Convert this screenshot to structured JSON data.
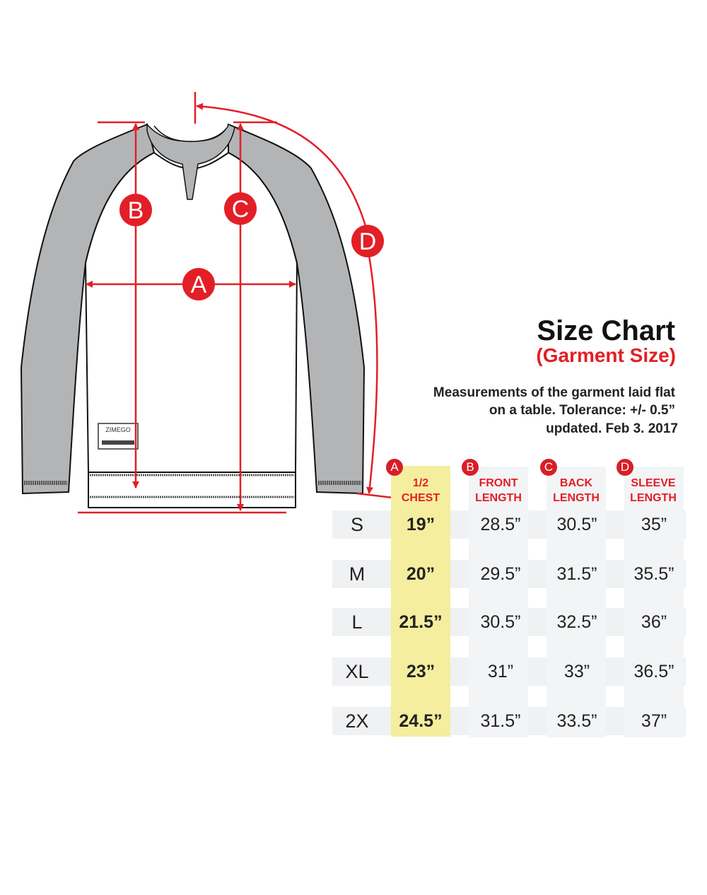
{
  "header": {
    "title": "Size Chart",
    "subtitle": "(Garment Size)",
    "note_lines": [
      "Measurements of the garment laid flat",
      "on a table.  Tolerance: +/- 0.5”",
      "updated. Feb 3. 2017"
    ]
  },
  "diagram": {
    "markers": [
      "A",
      "B",
      "C",
      "D"
    ],
    "brand_label": "ZIMEGO",
    "accent_color": "#e21f26",
    "sleeve_color": "#b3b4b6"
  },
  "table": {
    "columns": [
      {
        "marker": "A",
        "line1": "1/2",
        "line2": "CHEST"
      },
      {
        "marker": "B",
        "line1": "FRONT",
        "line2": "LENGTH"
      },
      {
        "marker": "C",
        "line1": "BACK",
        "line2": "LENGTH"
      },
      {
        "marker": "D",
        "line1": "SLEEVE",
        "line2": "LENGTH"
      }
    ],
    "rows": [
      {
        "size": "S",
        "values": [
          "19”",
          "28.5”",
          "30.5”",
          "35”"
        ]
      },
      {
        "size": "M",
        "values": [
          "20”",
          "29.5”",
          "31.5”",
          "35.5”"
        ]
      },
      {
        "size": "L",
        "values": [
          "21.5”",
          "30.5”",
          "32.5”",
          "36”"
        ]
      },
      {
        "size": "XL",
        "values": [
          "23”",
          "31”",
          "33”",
          "36.5”"
        ]
      },
      {
        "size": "2X",
        "values": [
          "24.5”",
          "31.5”",
          "33.5”",
          "37”"
        ]
      }
    ],
    "highlight_color": "#f5ee9f"
  }
}
